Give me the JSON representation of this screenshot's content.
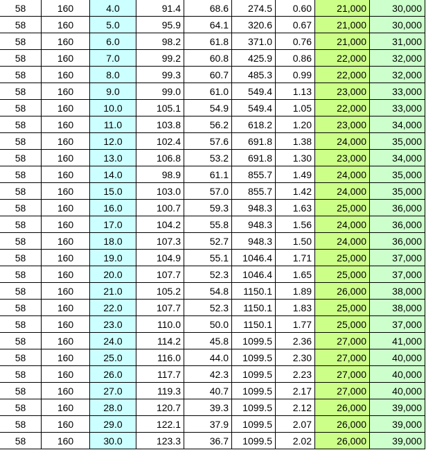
{
  "colors": {
    "col3": "#ccffff",
    "col8": "#ccff88",
    "col9": "#ccffcc"
  },
  "rows": [
    [
      "58",
      "160",
      "4.0",
      "91.4",
      "68.6",
      "274.5",
      "0.60",
      "21,000",
      "30,000"
    ],
    [
      "58",
      "160",
      "5.0",
      "95.9",
      "64.1",
      "320.6",
      "0.67",
      "21,000",
      "30,000"
    ],
    [
      "58",
      "160",
      "6.0",
      "98.2",
      "61.8",
      "371.0",
      "0.76",
      "21,000",
      "31,000"
    ],
    [
      "58",
      "160",
      "7.0",
      "99.2",
      "60.8",
      "425.9",
      "0.86",
      "22,000",
      "32,000"
    ],
    [
      "58",
      "160",
      "8.0",
      "99.3",
      "60.7",
      "485.3",
      "0.99",
      "22,000",
      "32,000"
    ],
    [
      "58",
      "160",
      "9.0",
      "99.0",
      "61.0",
      "549.4",
      "1.13",
      "23,000",
      "33,000"
    ],
    [
      "58",
      "160",
      "10.0",
      "105.1",
      "54.9",
      "549.4",
      "1.05",
      "22,000",
      "33,000"
    ],
    [
      "58",
      "160",
      "11.0",
      "103.8",
      "56.2",
      "618.2",
      "1.20",
      "23,000",
      "34,000"
    ],
    [
      "58",
      "160",
      "12.0",
      "102.4",
      "57.6",
      "691.8",
      "1.38",
      "24,000",
      "35,000"
    ],
    [
      "58",
      "160",
      "13.0",
      "106.8",
      "53.2",
      "691.8",
      "1.30",
      "23,000",
      "34,000"
    ],
    [
      "58",
      "160",
      "14.0",
      "98.9",
      "61.1",
      "855.7",
      "1.49",
      "24,000",
      "35,000"
    ],
    [
      "58",
      "160",
      "15.0",
      "103.0",
      "57.0",
      "855.7",
      "1.42",
      "24,000",
      "35,000"
    ],
    [
      "58",
      "160",
      "16.0",
      "100.7",
      "59.3",
      "948.3",
      "1.63",
      "25,000",
      "36,000"
    ],
    [
      "58",
      "160",
      "17.0",
      "104.2",
      "55.8",
      "948.3",
      "1.56",
      "24,000",
      "36,000"
    ],
    [
      "58",
      "160",
      "18.0",
      "107.3",
      "52.7",
      "948.3",
      "1.50",
      "24,000",
      "36,000"
    ],
    [
      "58",
      "160",
      "19.0",
      "104.9",
      "55.1",
      "1046.4",
      "1.71",
      "25,000",
      "37,000"
    ],
    [
      "58",
      "160",
      "20.0",
      "107.7",
      "52.3",
      "1046.4",
      "1.65",
      "25,000",
      "37,000"
    ],
    [
      "58",
      "160",
      "21.0",
      "105.2",
      "54.8",
      "1150.1",
      "1.89",
      "26,000",
      "38,000"
    ],
    [
      "58",
      "160",
      "22.0",
      "107.7",
      "52.3",
      "1150.1",
      "1.83",
      "25,000",
      "38,000"
    ],
    [
      "58",
      "160",
      "23.0",
      "110.0",
      "50.0",
      "1150.1",
      "1.77",
      "25,000",
      "37,000"
    ],
    [
      "58",
      "160",
      "24.0",
      "114.2",
      "45.8",
      "1099.5",
      "2.36",
      "27,000",
      "41,000"
    ],
    [
      "58",
      "160",
      "25.0",
      "116.0",
      "44.0",
      "1099.5",
      "2.30",
      "27,000",
      "40,000"
    ],
    [
      "58",
      "160",
      "26.0",
      "117.7",
      "42.3",
      "1099.5",
      "2.23",
      "27,000",
      "40,000"
    ],
    [
      "58",
      "160",
      "27.0",
      "119.3",
      "40.7",
      "1099.5",
      "2.17",
      "27,000",
      "40,000"
    ],
    [
      "58",
      "160",
      "28.0",
      "120.7",
      "39.3",
      "1099.5",
      "2.12",
      "26,000",
      "39,000"
    ],
    [
      "58",
      "160",
      "29.0",
      "122.1",
      "37.9",
      "1099.5",
      "2.07",
      "26,000",
      "39,000"
    ],
    [
      "58",
      "160",
      "30.0",
      "123.3",
      "36.7",
      "1099.5",
      "2.02",
      "26,000",
      "39,000"
    ]
  ]
}
